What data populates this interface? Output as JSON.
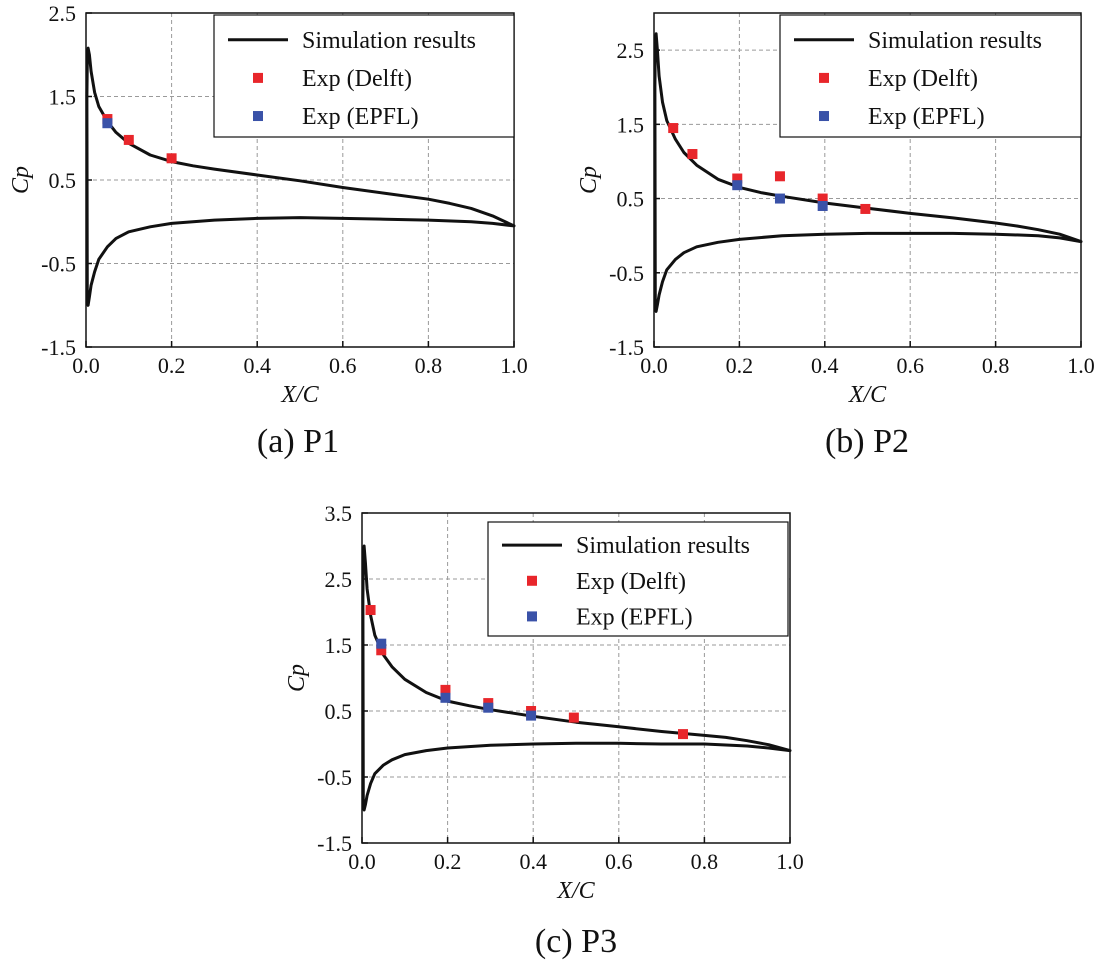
{
  "colors": {
    "delft": "#e8262b",
    "epfl": "#3a52a8",
    "line": "#111111"
  },
  "chart_data": [
    {
      "type": "line",
      "panel": "a",
      "caption": "(a) P1",
      "xlabel": "X/C",
      "ylabel": "Cp",
      "xlim": [
        0,
        1
      ],
      "ylim": [
        -1.5,
        2.5
      ],
      "xticks": [
        0.0,
        0.2,
        0.4,
        0.6,
        0.8,
        1.0
      ],
      "xtick_labels": [
        "0.0",
        "0.2",
        "0.4",
        "0.6",
        "0.8",
        "1.0"
      ],
      "yticks": [
        -1.5,
        -0.5,
        0.5,
        1.5,
        2.5
      ],
      "ytick_labels": [
        "-1.5",
        "-0.5",
        "0.5",
        "1.5",
        "2.5"
      ],
      "legend": {
        "position": "top-right",
        "entries": [
          "Simulation results",
          "Exp (Delft)",
          "Exp (EPFL)"
        ]
      },
      "series": [
        {
          "name": "Simulation results",
          "kind": "line",
          "x": [
            1.0,
            0.95,
            0.9,
            0.85,
            0.8,
            0.7,
            0.6,
            0.5,
            0.4,
            0.3,
            0.25,
            0.2,
            0.15,
            0.1,
            0.07,
            0.05,
            0.03,
            0.02,
            0.012,
            0.008,
            0.005,
            0.003,
            0.002,
            0.003,
            0.005,
            0.008,
            0.012,
            0.02,
            0.03,
            0.05,
            0.07,
            0.1,
            0.15,
            0.2,
            0.3,
            0.4,
            0.5,
            0.6,
            0.7,
            0.8,
            0.9,
            0.95,
            1.0
          ],
          "y": [
            -0.05,
            0.07,
            0.16,
            0.22,
            0.27,
            0.34,
            0.41,
            0.49,
            0.56,
            0.63,
            0.67,
            0.72,
            0.8,
            0.94,
            1.07,
            1.2,
            1.38,
            1.55,
            1.8,
            2.0,
            2.08,
            1.92,
            1.5,
            -0.98,
            -1.0,
            -0.9,
            -0.76,
            -0.6,
            -0.45,
            -0.3,
            -0.2,
            -0.12,
            -0.06,
            -0.02,
            0.02,
            0.04,
            0.05,
            0.04,
            0.03,
            0.02,
            0.0,
            -0.02,
            -0.05
          ]
        },
        {
          "name": "Exp (Delft)",
          "kind": "scatter",
          "x": [
            0.05,
            0.1,
            0.2
          ],
          "y": [
            1.23,
            0.98,
            0.76
          ]
        },
        {
          "name": "Exp (EPFL)",
          "kind": "scatter",
          "x": [
            0.05
          ],
          "y": [
            1.18
          ]
        }
      ]
    },
    {
      "type": "line",
      "panel": "b",
      "caption": "(b) P2",
      "xlabel": "X/C",
      "ylabel": "Cp",
      "xlim": [
        0,
        1
      ],
      "ylim": [
        -1.5,
        3.0
      ],
      "xticks": [
        0.0,
        0.2,
        0.4,
        0.6,
        0.8,
        1.0
      ],
      "xtick_labels": [
        "0.0",
        "0.2",
        "0.4",
        "0.6",
        "0.8",
        "1.0"
      ],
      "yticks": [
        -1.5,
        -0.5,
        0.5,
        1.5,
        2.5
      ],
      "ytick_labels": [
        "-1.5",
        "-0.5",
        "0.5",
        "1.5",
        "2.5"
      ],
      "legend": {
        "position": "top-right",
        "entries": [
          "Simulation results",
          "Exp (Delft)",
          "Exp (EPFL)"
        ]
      },
      "series": [
        {
          "name": "Simulation results",
          "kind": "line",
          "x": [
            1.0,
            0.95,
            0.9,
            0.85,
            0.8,
            0.7,
            0.6,
            0.5,
            0.4,
            0.3,
            0.25,
            0.2,
            0.15,
            0.1,
            0.07,
            0.05,
            0.03,
            0.02,
            0.012,
            0.008,
            0.005,
            0.003,
            0.002,
            0.003,
            0.005,
            0.008,
            0.012,
            0.02,
            0.03,
            0.05,
            0.07,
            0.1,
            0.15,
            0.2,
            0.3,
            0.4,
            0.5,
            0.6,
            0.7,
            0.8,
            0.9,
            0.95,
            1.0
          ],
          "y": [
            -0.08,
            0.02,
            0.08,
            0.13,
            0.17,
            0.24,
            0.3,
            0.37,
            0.44,
            0.53,
            0.58,
            0.65,
            0.76,
            0.95,
            1.12,
            1.3,
            1.55,
            1.8,
            2.15,
            2.5,
            2.72,
            2.55,
            2.0,
            -1.0,
            -1.02,
            -0.93,
            -0.8,
            -0.62,
            -0.46,
            -0.32,
            -0.23,
            -0.15,
            -0.09,
            -0.05,
            0.0,
            0.02,
            0.03,
            0.03,
            0.03,
            0.02,
            0.0,
            -0.03,
            -0.08
          ]
        },
        {
          "name": "Exp (Delft)",
          "kind": "scatter",
          "x": [
            0.045,
            0.09,
            0.195,
            0.295,
            0.395,
            0.495
          ],
          "y": [
            1.45,
            1.1,
            0.77,
            0.8,
            0.5,
            0.36
          ]
        },
        {
          "name": "Exp (EPFL)",
          "kind": "scatter",
          "x": [
            0.195,
            0.295,
            0.395
          ],
          "y": [
            0.68,
            0.5,
            0.4
          ]
        }
      ]
    },
    {
      "type": "line",
      "panel": "c",
      "caption": "(c) P3",
      "xlabel": "X/C",
      "ylabel": "Cp",
      "xlim": [
        0,
        1
      ],
      "ylim": [
        -1.5,
        3.5
      ],
      "xticks": [
        0.0,
        0.2,
        0.4,
        0.6,
        0.8,
        1.0
      ],
      "xtick_labels": [
        "0.0",
        "0.2",
        "0.4",
        "0.6",
        "0.8",
        "1.0"
      ],
      "yticks": [
        -1.5,
        -0.5,
        0.5,
        1.5,
        2.5,
        3.5
      ],
      "ytick_labels": [
        "-1.5",
        "-0.5",
        "0.5",
        "1.5",
        "2.5",
        "3.5"
      ],
      "legend": {
        "position": "top-right",
        "entries": [
          "Simulation results",
          "Exp (Delft)",
          "Exp (EPFL)"
        ]
      },
      "series": [
        {
          "name": "Simulation results",
          "kind": "line",
          "x": [
            1.0,
            0.95,
            0.9,
            0.85,
            0.8,
            0.7,
            0.6,
            0.5,
            0.4,
            0.3,
            0.25,
            0.2,
            0.15,
            0.1,
            0.07,
            0.05,
            0.03,
            0.02,
            0.012,
            0.008,
            0.005,
            0.003,
            0.002,
            0.003,
            0.005,
            0.008,
            0.012,
            0.02,
            0.03,
            0.05,
            0.07,
            0.1,
            0.15,
            0.2,
            0.3,
            0.4,
            0.5,
            0.6,
            0.7,
            0.8,
            0.9,
            0.95,
            1.0
          ],
          "y": [
            -0.1,
            -0.01,
            0.05,
            0.1,
            0.13,
            0.19,
            0.26,
            0.33,
            0.42,
            0.52,
            0.58,
            0.65,
            0.78,
            0.98,
            1.17,
            1.35,
            1.65,
            1.95,
            2.35,
            2.75,
            3.0,
            2.85,
            2.2,
            -0.97,
            -1.0,
            -0.92,
            -0.78,
            -0.6,
            -0.45,
            -0.32,
            -0.24,
            -0.16,
            -0.1,
            -0.06,
            -0.02,
            0.0,
            0.01,
            0.01,
            0.0,
            0.0,
            -0.03,
            -0.06,
            -0.1
          ]
        },
        {
          "name": "Exp (Delft)",
          "kind": "scatter",
          "x": [
            0.02,
            0.045,
            0.195,
            0.295,
            0.395,
            0.495,
            0.75
          ],
          "y": [
            2.03,
            1.42,
            0.82,
            0.62,
            0.5,
            0.4,
            0.15
          ]
        },
        {
          "name": "Exp (EPFL)",
          "kind": "scatter",
          "x": [
            0.045,
            0.195,
            0.295,
            0.395
          ],
          "y": [
            1.52,
            0.7,
            0.55,
            0.43
          ]
        }
      ]
    }
  ]
}
